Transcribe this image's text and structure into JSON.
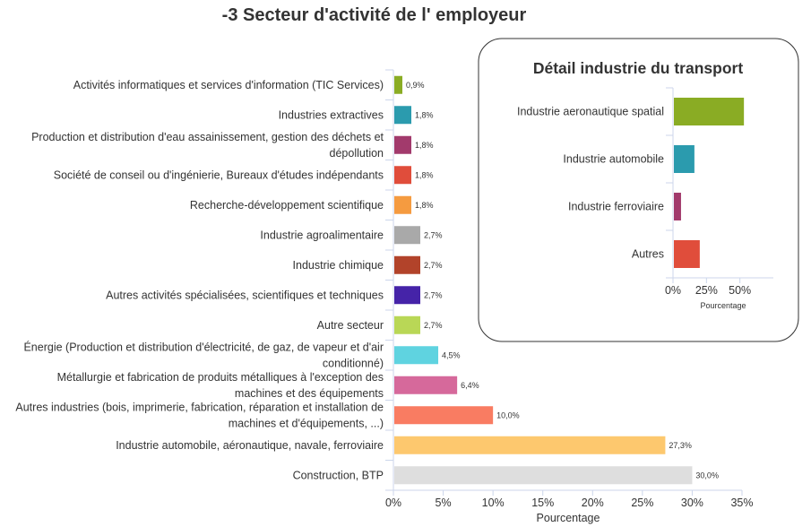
{
  "chart_data": [
    {
      "type": "bar",
      "orientation": "horizontal",
      "title": "-3 Secteur d'activité de l' employeur",
      "xlabel": "Pourcentage",
      "xlim": [
        0,
        35
      ],
      "xticks": [
        "0%",
        "5%",
        "10%",
        "15%",
        "20%",
        "25%",
        "30%",
        "35%"
      ],
      "grid": false,
      "categories": [
        "Activités informatiques et services d'information (TIC Services)",
        "Industries extractives",
        "Production et distribution d'eau assainissement, gestion des déchets et dépollution",
        "Société de conseil ou d'ingénierie, Bureaux d'études indépendants",
        "Recherche-développement scientifique",
        "Industrie agroalimentaire",
        "Industrie chimique",
        "Autres activités spécialisées, scientifiques et techniques",
        "Autre secteur",
        "Énergie (Production et distribution d'électricité, de gaz, de vapeur et d'air conditionné)",
        "Métallurgie et fabrication de produits métalliques à l'exception des machines et des équipements",
        "Autres industries (bois, imprimerie, fabrication, réparation et installation de machines et d'équipements, ...)",
        "Industrie automobile, aéronautique, navale, ferroviaire",
        "Construction, BTP"
      ],
      "category_lines": [
        [
          "Activités informatiques et services d'information (TIC Services)"
        ],
        [
          "Industries extractives"
        ],
        [
          "Production et distribution d'eau assainissement, gestion des déchets et",
          "dépollution"
        ],
        [
          "Société de conseil ou d'ingénierie, Bureaux d'études indépendants"
        ],
        [
          "Recherche-développement scientifique"
        ],
        [
          "Industrie agroalimentaire"
        ],
        [
          "Industrie chimique"
        ],
        [
          "Autres activités spécialisées, scientifiques et techniques"
        ],
        [
          "Autre secteur"
        ],
        [
          "Énergie (Production et distribution d'électricité, de gaz, de vapeur et d'air",
          "conditionné)"
        ],
        [
          "Métallurgie et fabrication de produits métalliques à l'exception des",
          "machines et des équipements"
        ],
        [
          "Autres industries (bois, imprimerie, fabrication, réparation et installation de",
          "machines et d'équipements, ...)"
        ],
        [
          "Industrie automobile, aéronautique, navale, ferroviaire"
        ],
        [
          "Construction, BTP"
        ]
      ],
      "values": [
        0.9,
        1.8,
        1.8,
        1.8,
        1.8,
        2.7,
        2.7,
        2.7,
        2.7,
        4.5,
        6.4,
        10.0,
        27.3,
        30.0
      ],
      "value_labels": [
        "0,9%",
        "1,8%",
        "1,8%",
        "1,8%",
        "1,8%",
        "2,7%",
        "2,7%",
        "2,7%",
        "2,7%",
        "4,5%",
        "6,4%",
        "10,0%",
        "27,3%",
        "30,0%"
      ],
      "colors": [
        "#8aac24",
        "#2b9bae",
        "#a23a6c",
        "#e04d3b",
        "#f59b40",
        "#a9a9a9",
        "#b2432a",
        "#4523a8",
        "#b9d756",
        "#5fd3e0",
        "#d6699b",
        "#f97c62",
        "#fdc86e",
        "#dedede"
      ]
    },
    {
      "type": "bar",
      "orientation": "horizontal",
      "title": "Détail industrie du transport",
      "xlabel": "Pourcentage",
      "xlim": [
        0,
        75
      ],
      "xticks": [
        "0%",
        "25%",
        "50%"
      ],
      "grid": false,
      "categories": [
        "Industrie aeronautique spatial",
        "Industrie automobile",
        "Industrie ferroviaire",
        "Autres"
      ],
      "values": [
        53,
        16,
        6,
        20
      ],
      "colors": [
        "#8aac24",
        "#2b9bae",
        "#a23a6c",
        "#e04d3b"
      ]
    }
  ]
}
